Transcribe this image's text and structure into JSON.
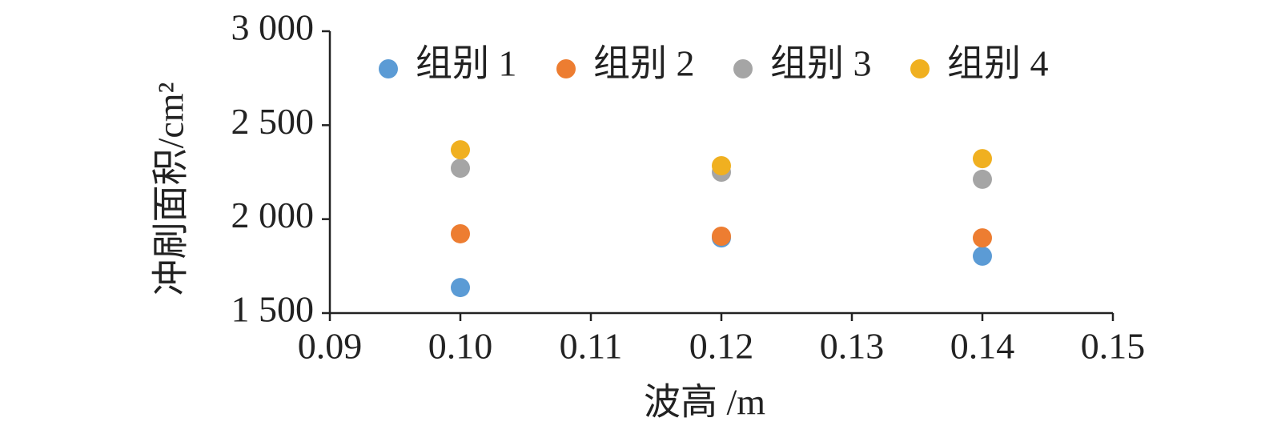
{
  "chart_data": {
    "type": "scatter",
    "x_label": "波高 /m",
    "y_label": "冲刷面积/cm²",
    "x": [
      0.1,
      0.12,
      0.14
    ],
    "series": [
      {
        "name": "组别 1",
        "color": "#5b9bd5",
        "values": [
          1636,
          1900,
          1803
        ]
      },
      {
        "name": "组别 2",
        "color": "#ed7d31",
        "values": [
          1922,
          1909,
          1900
        ]
      },
      {
        "name": "组别 3",
        "color": "#a5a5a5",
        "values": [
          2271,
          2250,
          2212
        ]
      },
      {
        "name": "组别 4",
        "color": "#f0b020",
        "values": [
          2369,
          2284,
          2322
        ]
      }
    ],
    "xlim": [
      0.09,
      0.15
    ],
    "xticks": [
      {
        "value": 0.09,
        "label": "0.09"
      },
      {
        "value": 0.1,
        "label": "0.10"
      },
      {
        "value": 0.11,
        "label": "0.11"
      },
      {
        "value": 0.12,
        "label": "0.12"
      },
      {
        "value": 0.13,
        "label": "0.13"
      },
      {
        "value": 0.14,
        "label": "0.14"
      },
      {
        "value": 0.15,
        "label": "0.15"
      }
    ],
    "ylim": [
      1500,
      3000
    ],
    "yticks": [
      {
        "value": 1500,
        "label": "1 500"
      },
      {
        "value": 2000,
        "label": "2 000"
      },
      {
        "value": 2500,
        "label": "2 500"
      },
      {
        "value": 3000,
        "label": "3 000"
      }
    ],
    "legend": "top"
  }
}
